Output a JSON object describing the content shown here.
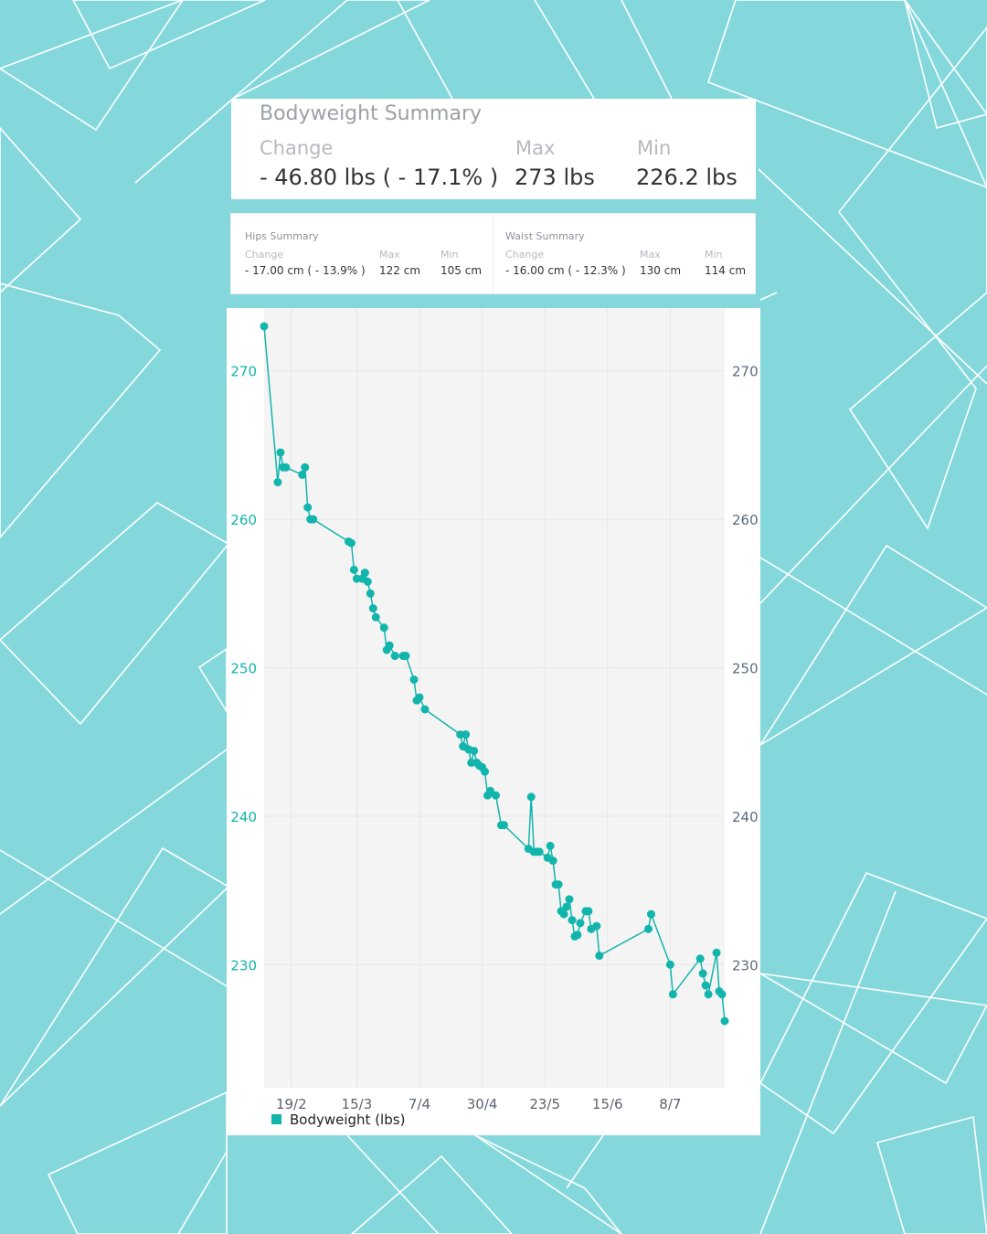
{
  "bodyweight_summary": {
    "title": "Bodyweight Summary",
    "change_label": "Change",
    "change_value": "- 46.80 lbs ( - 17.1% )",
    "max_label": "Max",
    "max_value": "273 lbs",
    "min_label": "Min",
    "min_value": "226.2 lbs"
  },
  "hips_summary": {
    "title": "Hips Summary",
    "change_label": "Change",
    "change_value": "- 17.00 cm ( - 13.9% )",
    "max_label": "Max",
    "max_value": "122 cm",
    "min_label": "Min",
    "min_value": "105 cm"
  },
  "waist_summary": {
    "title": "Waist Summary",
    "change_label": "Change",
    "change_value": "- 16.00 cm ( - 12.3% )",
    "max_label": "Max",
    "max_value": "130 cm",
    "min_label": "Min",
    "min_value": "114 cm"
  },
  "colors": {
    "background": "#84d8dc",
    "series": "#12b5ac",
    "left_axis": "#12b5ac",
    "right_axis": "#5a6b80",
    "plot_bg": "#f4f4f4"
  },
  "chart_data": {
    "type": "line",
    "xlim": [
      "9/2",
      "28/7"
    ],
    "ylim": [
      226.2,
      273
    ],
    "x_ticks": [
      "19/2",
      "15/3",
      "7/4",
      "30/4",
      "23/5",
      "15/6",
      "8/7"
    ],
    "y_ticks": [
      230,
      240,
      250,
      260,
      270
    ],
    "grid": true,
    "legend": "bottom-left",
    "series": [
      {
        "name": "Bodyweight (lbs)",
        "points": [
          [
            "9/2",
            273.0
          ],
          [
            "14/2",
            262.5
          ],
          [
            "15/2",
            264.5
          ],
          [
            "16/2",
            263.5
          ],
          [
            "17/2",
            263.5
          ],
          [
            "23/2",
            263.0
          ],
          [
            "24/2",
            263.5
          ],
          [
            "25/2",
            260.8
          ],
          [
            "26/2",
            260.0
          ],
          [
            "27/2",
            260.0
          ],
          [
            "12/3",
            258.5
          ],
          [
            "13/3",
            258.4
          ],
          [
            "14/3",
            256.6
          ],
          [
            "15/3",
            256.0
          ],
          [
            "17/3",
            256.0
          ],
          [
            "18/3",
            256.4
          ],
          [
            "19/3",
            255.8
          ],
          [
            "20/3",
            255.0
          ],
          [
            "21/3",
            254.0
          ],
          [
            "22/3",
            253.4
          ],
          [
            "25/3",
            252.7
          ],
          [
            "26/3",
            251.2
          ],
          [
            "27/3",
            251.5
          ],
          [
            "29/3",
            250.8
          ],
          [
            "1/4",
            250.8
          ],
          [
            "2/4",
            250.8
          ],
          [
            "5/4",
            249.2
          ],
          [
            "6/4",
            247.8
          ],
          [
            "7/4",
            248.0
          ],
          [
            "9/4",
            247.2
          ],
          [
            "22/4",
            245.5
          ],
          [
            "23/4",
            244.7
          ],
          [
            "24/4",
            245.5
          ],
          [
            "25/4",
            244.5
          ],
          [
            "26/4",
            243.6
          ],
          [
            "27/4",
            244.4
          ],
          [
            "28/4",
            243.6
          ],
          [
            "29/4",
            243.4
          ],
          [
            "30/4",
            243.3
          ],
          [
            "1/5",
            243.0
          ],
          [
            "2/5",
            241.4
          ],
          [
            "3/5",
            241.7
          ],
          [
            "5/5",
            241.4
          ],
          [
            "7/5",
            239.4
          ],
          [
            "8/5",
            239.4
          ],
          [
            "17/5",
            237.8
          ],
          [
            "18/5",
            241.3
          ],
          [
            "19/5",
            237.6
          ],
          [
            "20/5",
            237.6
          ],
          [
            "21/5",
            237.6
          ],
          [
            "24/5",
            237.2
          ],
          [
            "25/5",
            238.0
          ],
          [
            "26/5",
            237.0
          ],
          [
            "27/5",
            235.4
          ],
          [
            "28/5",
            235.4
          ],
          [
            "29/5",
            233.6
          ],
          [
            "30/5",
            233.4
          ],
          [
            "31/5",
            233.9
          ],
          [
            "1/6",
            234.4
          ],
          [
            "2/6",
            233.0
          ],
          [
            "3/6",
            231.9
          ],
          [
            "4/6",
            232.0
          ],
          [
            "5/6",
            232.8
          ],
          [
            "7/6",
            233.6
          ],
          [
            "8/6",
            233.6
          ],
          [
            "9/6",
            232.4
          ],
          [
            "11/6",
            232.6
          ],
          [
            "12/6",
            230.6
          ],
          [
            "30/6",
            232.4
          ],
          [
            "1/7",
            233.4
          ],
          [
            "8/7",
            230.0
          ],
          [
            "9/7",
            228.0
          ],
          [
            "19/7",
            230.4
          ],
          [
            "20/7",
            229.4
          ],
          [
            "21/7",
            228.6
          ],
          [
            "22/7",
            228.0
          ],
          [
            "25/7",
            230.8
          ],
          [
            "26/7",
            228.2
          ],
          [
            "27/7",
            228.0
          ],
          [
            "28/7",
            226.2
          ]
        ]
      }
    ]
  }
}
